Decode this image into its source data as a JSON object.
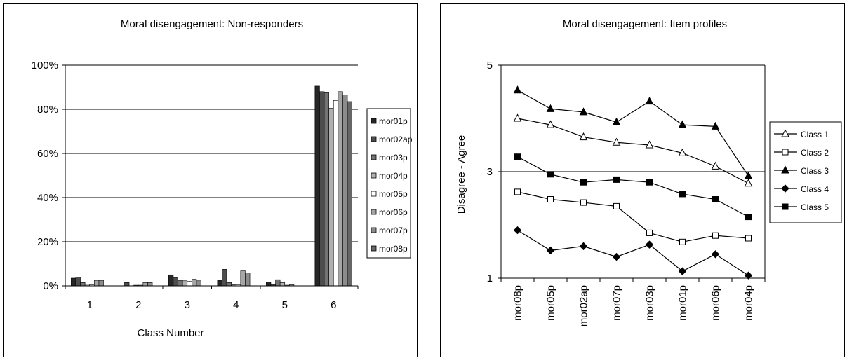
{
  "chart_data": [
    {
      "type": "bar",
      "title": "Moral disengagement: Non-responders",
      "xlabel": "Class Number",
      "ylabel": "",
      "ylim": [
        0,
        100
      ],
      "yticks": [
        "0%",
        "20%",
        "40%",
        "60%",
        "80%",
        "100%"
      ],
      "categories": [
        "1",
        "2",
        "3",
        "4",
        "5",
        "6"
      ],
      "grid": true,
      "legend": "right",
      "series": [
        {
          "name": "mor01p",
          "color": "#262626",
          "values": [
            3.5,
            0,
            5.0,
            2.5,
            1.8,
            90.5
          ]
        },
        {
          "name": "mor02ap",
          "color": "#4d4d4d",
          "values": [
            4.0,
            1.5,
            3.8,
            7.5,
            0.5,
            88.0
          ]
        },
        {
          "name": "mor03p",
          "color": "#737373",
          "values": [
            1.5,
            0,
            2.5,
            1.5,
            2.8,
            87.5
          ]
        },
        {
          "name": "mor04p",
          "color": "#b0b0b0",
          "values": [
            0.8,
            0.3,
            2.3,
            0.5,
            1.5,
            80.5
          ]
        },
        {
          "name": "mor05p",
          "color": "#ffffff",
          "values": [
            0.5,
            0.3,
            2.0,
            0.5,
            0.3,
            84.0
          ]
        },
        {
          "name": "mor06p",
          "color": "#a6a6a6",
          "values": [
            2.5,
            1.5,
            3.0,
            6.8,
            0.5,
            88.0
          ]
        },
        {
          "name": "mor07p",
          "color": "#8c8c8c",
          "values": [
            2.5,
            1.5,
            2.3,
            5.8,
            0,
            86.5
          ]
        },
        {
          "name": "mor08p",
          "color": "#666666",
          "values": [
            0,
            0,
            0,
            0,
            0,
            83.5
          ]
        }
      ]
    },
    {
      "type": "line",
      "title": "Moral disengagement: Item profiles",
      "xlabel": "",
      "ylabel": "Disagree - Agree",
      "ylim": [
        1,
        5
      ],
      "yticks": [
        "1",
        "3",
        "5"
      ],
      "categories": [
        "mor08p",
        "mor05p",
        "mor02ap",
        "mor07p",
        "mor03p",
        "mor01p",
        "mor06p",
        "mor04p"
      ],
      "grid": true,
      "legend": "right",
      "series": [
        {
          "name": "Class 1",
          "marker": "triangle-open",
          "values": [
            4.0,
            3.88,
            3.65,
            3.55,
            3.5,
            3.35,
            3.1,
            2.78
          ]
        },
        {
          "name": "Class 2",
          "marker": "square-open",
          "values": [
            2.62,
            2.48,
            2.42,
            2.35,
            1.85,
            1.68,
            1.8,
            1.75
          ]
        },
        {
          "name": "Class 3",
          "marker": "triangle",
          "values": [
            4.53,
            4.18,
            4.12,
            3.93,
            4.32,
            3.88,
            3.85,
            2.92
          ]
        },
        {
          "name": "Class 4",
          "marker": "diamond",
          "values": [
            1.9,
            1.52,
            1.6,
            1.4,
            1.63,
            1.13,
            1.45,
            1.05
          ]
        },
        {
          "name": "Class 5",
          "marker": "square",
          "values": [
            3.28,
            2.95,
            2.8,
            2.85,
            2.8,
            2.58,
            2.48,
            2.15
          ]
        }
      ]
    }
  ]
}
